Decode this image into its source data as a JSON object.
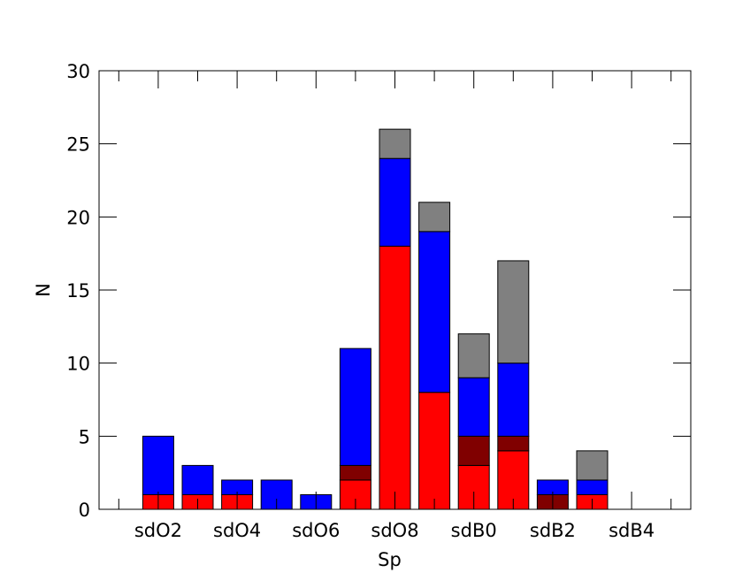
{
  "chart_data": {
    "type": "bar",
    "stacked": true,
    "xlabel": "Sp",
    "ylabel": "N",
    "ylim": [
      0,
      30
    ],
    "xlim": [
      0.5,
      15.5
    ],
    "yticks": [
      0,
      5,
      10,
      15,
      20,
      25,
      30
    ],
    "xticks": [
      {
        "pos": 2,
        "label": "sdO2"
      },
      {
        "pos": 4,
        "label": "sdO4"
      },
      {
        "pos": 6,
        "label": "sdO6"
      },
      {
        "pos": 8,
        "label": "sdO8"
      },
      {
        "pos": 10,
        "label": "sdB0"
      },
      {
        "pos": 12,
        "label": "sdB2"
      },
      {
        "pos": 14,
        "label": "sdB4"
      }
    ],
    "minor_tick_positions": [
      1,
      3,
      5,
      7,
      9,
      11,
      13,
      15
    ],
    "x": [
      2,
      3,
      4,
      5,
      6,
      7,
      8,
      9,
      10,
      11,
      12,
      13
    ],
    "series": [
      {
        "color": "#ff0000",
        "values": [
          1,
          1,
          1,
          0,
          0,
          2,
          18,
          8,
          3,
          4,
          0,
          1
        ]
      },
      {
        "color": "#800000",
        "values": [
          0,
          0,
          0,
          0,
          0,
          1,
          0,
          0,
          2,
          1,
          1,
          0
        ]
      },
      {
        "color": "#0000ff",
        "values": [
          4,
          2,
          1,
          2,
          1,
          8,
          6,
          11,
          4,
          5,
          1,
          1
        ]
      },
      {
        "color": "#808080",
        "values": [
          0,
          0,
          0,
          0,
          0,
          0,
          2,
          2,
          3,
          7,
          0,
          2
        ]
      }
    ],
    "grid": false,
    "legend": "none"
  }
}
